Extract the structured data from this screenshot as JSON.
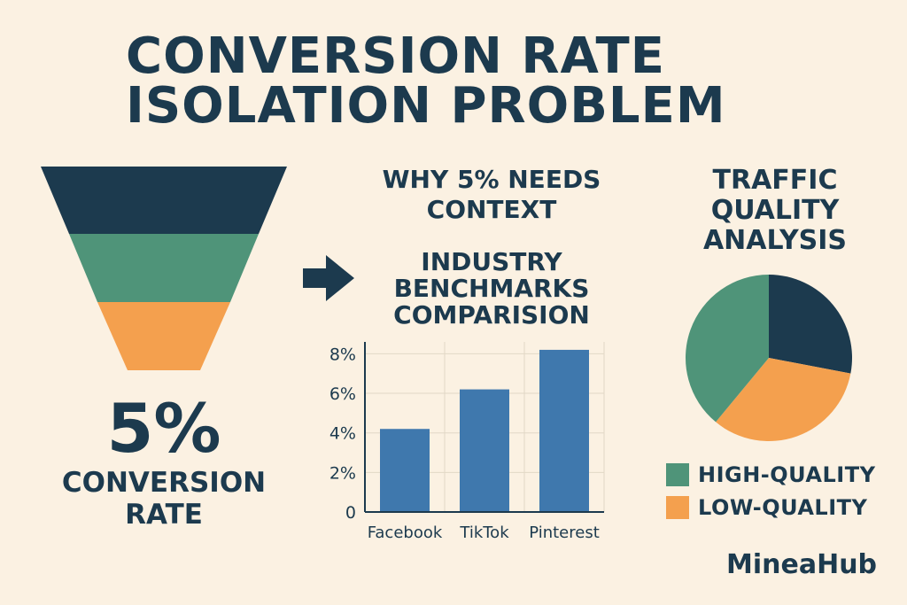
{
  "title": {
    "line1": "CONVERSION RATE",
    "line2": "ISOLATION PROBLEM"
  },
  "colors": {
    "navy": "#1c3a4e",
    "green": "#4f9479",
    "orange": "#f4a04e",
    "bar": "#3f78ad",
    "background": "#fbf1e2"
  },
  "funnel": {
    "stages": [
      "navy",
      "green",
      "orange"
    ],
    "value": "5%",
    "label_line1": "CONVERSION",
    "label_line2": "RATE"
  },
  "arrow_icon": "right-arrow-icon",
  "benchmarks": {
    "heading_line1": "WHY 5% NEEDS",
    "heading_line2": "CONTEXT",
    "subheading_line1": "INDUSTRY",
    "subheading_line2": "BENCHMARKS",
    "subheading_line3": "COMPARISION"
  },
  "traffic": {
    "heading_line1": "TRAFFIC",
    "heading_line2": "QUALITY",
    "heading_line3": "ANALYSIS"
  },
  "brand": "MineaHub",
  "chart_data": [
    {
      "type": "bar",
      "categories": [
        "Facebook",
        "TikTok",
        "Pinterest"
      ],
      "values": [
        4.2,
        6.2,
        8.2
      ],
      "yticks": [
        "0",
        "2%",
        "4%",
        "6%",
        "8%"
      ],
      "ylim": [
        0,
        8.6
      ],
      "grid": true,
      "color": "#3f78ad"
    },
    {
      "type": "pie",
      "slices": [
        {
          "label": "",
          "value": 0.28,
          "color": "#1c3a4e"
        },
        {
          "label": "LOW-QUALITY",
          "value": 0.33,
          "color": "#f4a04e"
        },
        {
          "label": "HIGH-QUALITY",
          "value": 0.39,
          "color": "#4f9479"
        }
      ],
      "legend": [
        {
          "label": "HIGH-QUALITY",
          "color": "#4f9479"
        },
        {
          "label": "LOW-QUALITY",
          "color": "#f4a04e"
        }
      ],
      "legend_position": "bottom"
    }
  ]
}
